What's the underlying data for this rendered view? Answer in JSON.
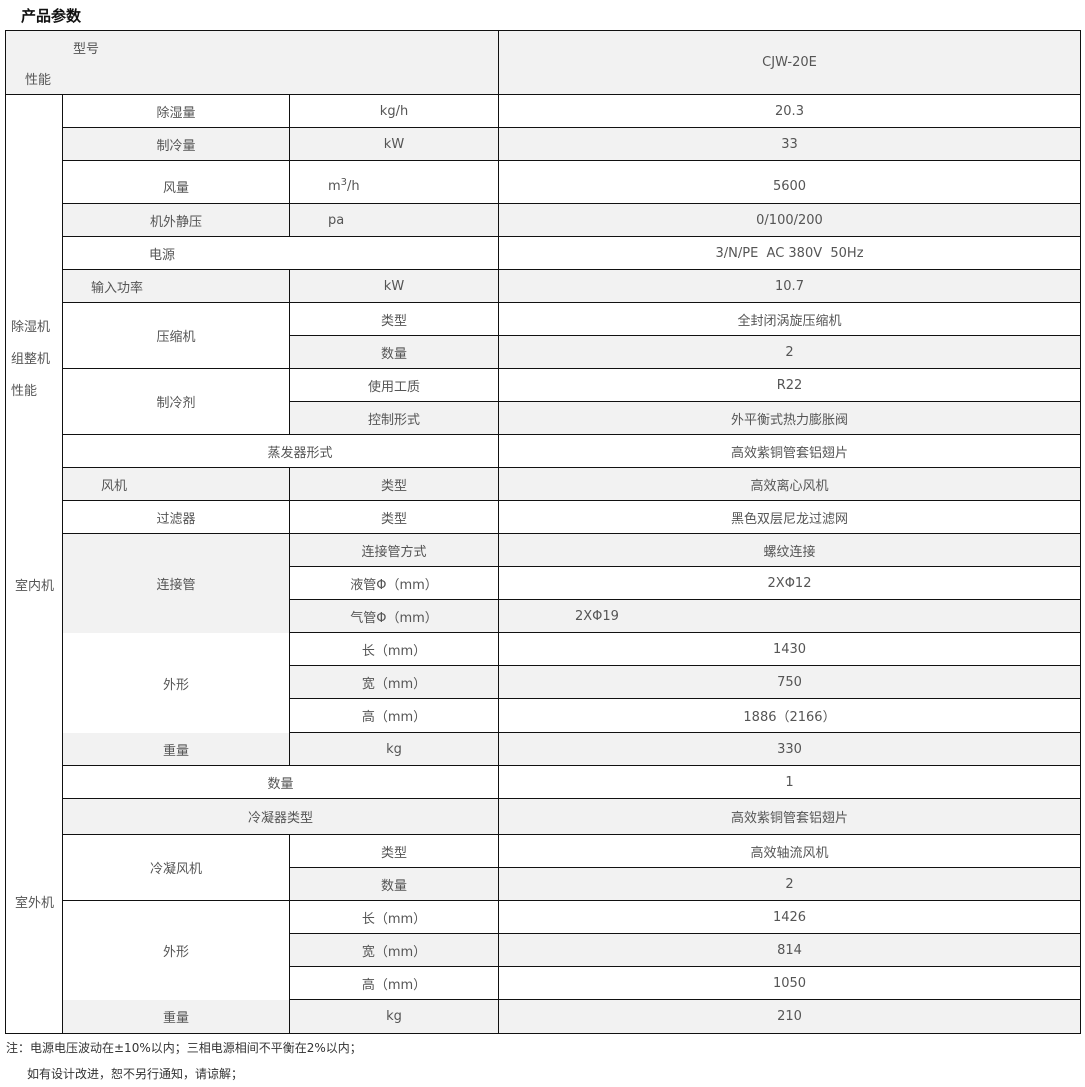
{
  "title": "产品参数",
  "header": {
    "model_label": "型号",
    "perf_label": "性能",
    "model_value": "CJW-20E"
  },
  "groups": {
    "dehumidifier": "除湿机\n组整机\n性能",
    "indoor": "室内机",
    "outdoor": "室外机"
  },
  "rows": {
    "dehum": {
      "name": "除湿量",
      "unit": "kg/h",
      "value": "20.3"
    },
    "cooling": {
      "name": "制冷量",
      "unit": "kW",
      "value": "33"
    },
    "airflow": {
      "name": "风量",
      "unit_base": "m",
      "unit_sup": "3",
      "unit_rest": "/h",
      "value": "5600"
    },
    "pressure": {
      "name": "机外静压",
      "unit": "pa",
      "value": "0/100/200"
    },
    "power": {
      "name": "电源",
      "value": "3/N/PE  AC 380V  50Hz"
    },
    "input": {
      "name": "输入功率",
      "unit": "kW",
      "value": "10.7"
    },
    "compressor": {
      "name": "压缩机",
      "type_label": "类型",
      "type_value": "全封闭涡旋压缩机",
      "qty_label": "数量",
      "qty_value": "2"
    },
    "refrigerant": {
      "name": "制冷剂",
      "medium_label": "使用工质",
      "medium_value": "R22",
      "control_label": "控制形式",
      "control_value": "外平衡式热力膨胀阀"
    },
    "evaporator": {
      "name": "蒸发器形式",
      "value": "高效紫铜管套铝翅片"
    },
    "fan": {
      "name": "风机",
      "label": "类型",
      "value": "高效离心风机"
    },
    "filter": {
      "name": "过滤器",
      "label": "类型",
      "value": "黑色双层尼龙过滤网"
    },
    "pipe": {
      "name": "连接管",
      "method_label": "连接管方式",
      "method_value": "螺纹连接",
      "liquid_label": "液管Φ（mm）",
      "liquid_value": "2XΦ12",
      "gas_label": "气管Φ（mm）",
      "gas_value": "2XΦ19"
    },
    "indoor_dim": {
      "name": "外形",
      "l_label": "长（mm）",
      "l_value": "1430",
      "w_label": "宽（mm）",
      "w_value": "750",
      "h_label": "高（mm）",
      "h_value": "1886（2166）"
    },
    "indoor_weight": {
      "name": "重量",
      "unit": "kg",
      "value": "330"
    },
    "outdoor_qty": {
      "name": "数量",
      "value": "1"
    },
    "condenser": {
      "name": "冷凝器类型",
      "value": "高效紫铜管套铝翅片"
    },
    "cond_fan": {
      "name": "冷凝风机",
      "type_label": "类型",
      "type_value": "高效轴流风机",
      "qty_label": "数量",
      "qty_value": "2"
    },
    "outdoor_dim": {
      "name": "外形",
      "l_label": "长（mm）",
      "l_value": "1426",
      "w_label": "宽（mm）",
      "w_value": "814",
      "h_label": "高（mm）",
      "h_value": "1050"
    },
    "outdoor_weight": {
      "name": "重量",
      "unit": "kg",
      "value": "210"
    }
  },
  "notes": [
    "注：电源电压波动在±10%以内；三相电源相间不平衡在2%以内；",
    "如有设计改进，恕不另行通知，请谅解；"
  ]
}
